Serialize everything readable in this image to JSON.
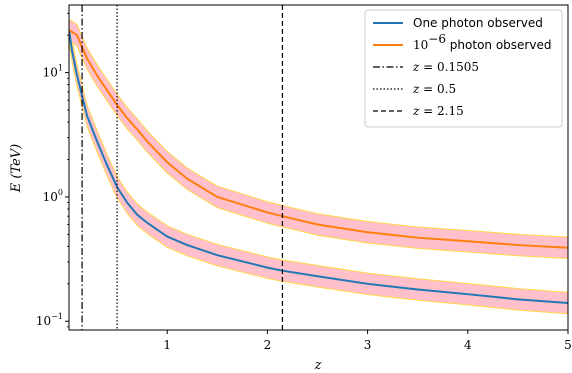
{
  "chart_data": {
    "type": "line",
    "title": "",
    "xlabel": "z",
    "ylabel": "E (TeV)",
    "xlim": [
      0.02,
      5.0
    ],
    "ylim": [
      0.085,
      35
    ],
    "yscale": "log",
    "xticks": [
      {
        "value": 1,
        "label": "1"
      },
      {
        "value": 2,
        "label": "2"
      },
      {
        "value": 3,
        "label": "3"
      },
      {
        "value": 4,
        "label": "4"
      },
      {
        "value": 5,
        "label": "5"
      }
    ],
    "yticks": [
      {
        "value": 0.1,
        "base": "10",
        "exp": "−1"
      },
      {
        "value": 1,
        "base": "10",
        "exp": "0"
      },
      {
        "value": 10,
        "base": "10",
        "exp": "1"
      }
    ],
    "band_color": "#ffc0cb",
    "band_edge_color": "#ffd84a",
    "band_factor": 1.22,
    "series": [
      {
        "name": "One photon observed",
        "color": "#1f77b4",
        "x": [
          0.02,
          0.05,
          0.1,
          0.1505,
          0.2,
          0.3,
          0.4,
          0.5,
          0.6,
          0.7,
          0.8,
          1.0,
          1.2,
          1.5,
          2.0,
          2.15,
          2.5,
          3.0,
          3.5,
          4.0,
          4.5,
          5.0
        ],
        "y": [
          22,
          15,
          9.5,
          6.5,
          4.5,
          2.8,
          1.8,
          1.2,
          0.9,
          0.72,
          0.62,
          0.48,
          0.41,
          0.34,
          0.27,
          0.255,
          0.23,
          0.2,
          0.18,
          0.165,
          0.15,
          0.14
        ]
      },
      {
        "name": "10^-6 photon observed",
        "color": "#ff7f0e",
        "x": [
          0.02,
          0.1,
          0.1505,
          0.2,
          0.3,
          0.4,
          0.5,
          0.6,
          0.7,
          0.8,
          1.0,
          1.2,
          1.5,
          2.0,
          2.15,
          2.5,
          3.0,
          3.5,
          4.0,
          4.5,
          5.0
        ],
        "y": [
          22,
          20,
          16,
          13,
          9.5,
          7.2,
          5.5,
          4.3,
          3.5,
          2.8,
          1.9,
          1.4,
          1.0,
          0.75,
          0.7,
          0.6,
          0.52,
          0.47,
          0.44,
          0.41,
          0.39
        ]
      }
    ],
    "vlines": [
      {
        "x": 0.1505,
        "style": "dashdot",
        "label": "0.1505"
      },
      {
        "x": 0.5,
        "style": "dotted",
        "label": "0.5"
      },
      {
        "x": 2.15,
        "style": "dashed",
        "label": "2.15"
      }
    ],
    "legend": {
      "position": "top-right",
      "entries": [
        {
          "kind": "line",
          "color": "#1f77b4",
          "text": "One photon observed"
        },
        {
          "kind": "line",
          "color": "#ff7f0e",
          "base": "10",
          "exp": "−6",
          "text": " photon observed"
        },
        {
          "kind": "vline",
          "style": "dashdot",
          "var": "z",
          "eq": " = ",
          "value": "0.1505"
        },
        {
          "kind": "vline",
          "style": "dotted",
          "var": "z",
          "eq": " = ",
          "value": "0.5"
        },
        {
          "kind": "vline",
          "style": "dashed",
          "var": "z",
          "eq": " = ",
          "value": "2.15"
        }
      ]
    }
  }
}
